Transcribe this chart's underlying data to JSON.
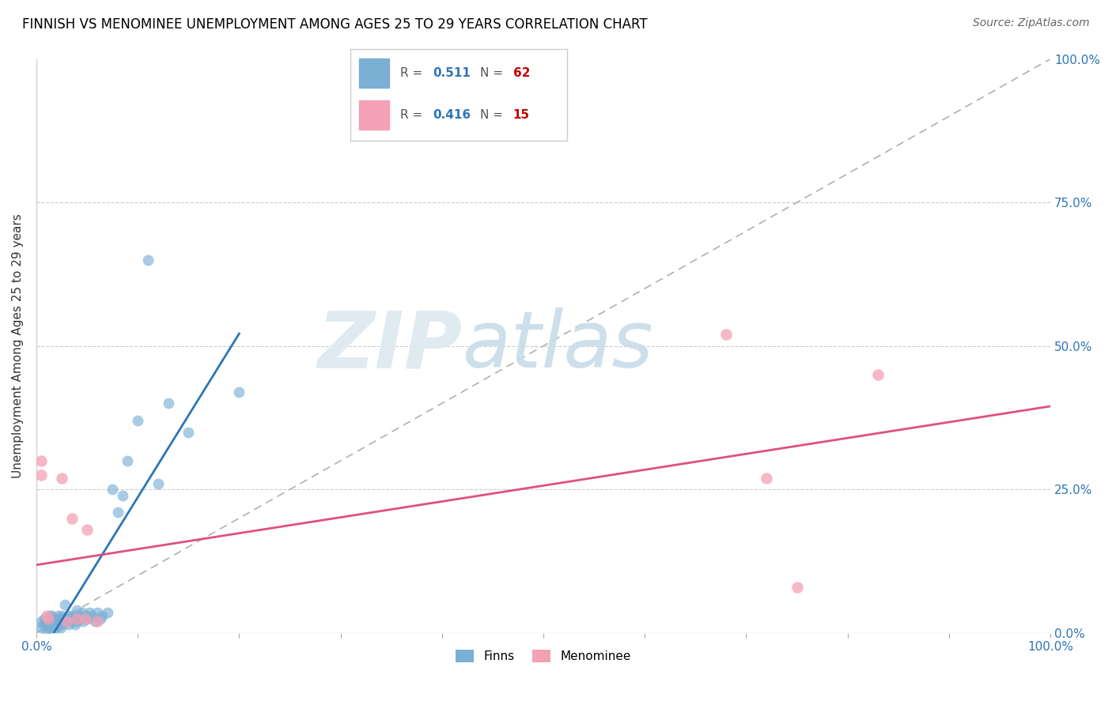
{
  "title": "FINNISH VS MENOMINEE UNEMPLOYMENT AMONG AGES 25 TO 29 YEARS CORRELATION CHART",
  "source": "Source: ZipAtlas.com",
  "ylabel": "Unemployment Among Ages 25 to 29 years",
  "xlim": [
    0,
    1
  ],
  "ylim": [
    0,
    1
  ],
  "xticks": [
    0.0,
    0.1,
    0.2,
    0.3,
    0.4,
    0.5,
    0.6,
    0.7,
    0.8,
    0.9,
    1.0
  ],
  "yticks": [
    0.0,
    0.25,
    0.5,
    0.75,
    1.0
  ],
  "xticklabels_shown": {
    "0.0": "0.0%",
    "1.0": "100.0%"
  },
  "yticklabels": [
    "0.0%",
    "25.0%",
    "50.0%",
    "75.0%",
    "100.0%"
  ],
  "finns_color": "#7bafd4",
  "menominee_color": "#f4a0b5",
  "finns_line_color": "#2e75b6",
  "menominee_line_color": "#e05080",
  "finns_R": 0.511,
  "finns_N": 62,
  "menominee_R": 0.416,
  "menominee_N": 15,
  "legend_R_color": "#2e75b6",
  "legend_N_color": "#c00000",
  "watermark_text": "ZIPatlas",
  "finns_x": [
    0.005,
    0.005,
    0.007,
    0.008,
    0.01,
    0.01,
    0.012,
    0.012,
    0.013,
    0.014,
    0.015,
    0.015,
    0.016,
    0.017,
    0.018,
    0.018,
    0.019,
    0.02,
    0.02,
    0.021,
    0.022,
    0.022,
    0.023,
    0.024,
    0.025,
    0.025,
    0.026,
    0.027,
    0.028,
    0.03,
    0.031,
    0.032,
    0.033,
    0.035,
    0.036,
    0.037,
    0.038,
    0.04,
    0.04,
    0.042,
    0.043,
    0.045,
    0.046,
    0.048,
    0.05,
    0.052,
    0.055,
    0.058,
    0.06,
    0.063,
    0.065,
    0.07,
    0.075,
    0.08,
    0.085,
    0.09,
    0.1,
    0.11,
    0.12,
    0.13,
    0.15,
    0.2
  ],
  "finns_y": [
    0.01,
    0.02,
    0.015,
    0.025,
    0.005,
    0.015,
    0.01,
    0.02,
    0.03,
    0.01,
    0.02,
    0.03,
    0.015,
    0.025,
    0.01,
    0.015,
    0.02,
    0.01,
    0.025,
    0.02,
    0.015,
    0.03,
    0.025,
    0.01,
    0.02,
    0.03,
    0.015,
    0.025,
    0.05,
    0.02,
    0.03,
    0.015,
    0.025,
    0.02,
    0.03,
    0.025,
    0.015,
    0.04,
    0.02,
    0.03,
    0.025,
    0.035,
    0.02,
    0.03,
    0.025,
    0.035,
    0.03,
    0.02,
    0.035,
    0.025,
    0.03,
    0.035,
    0.25,
    0.21,
    0.24,
    0.3,
    0.37,
    0.65,
    0.26,
    0.4,
    0.35,
    0.42
  ],
  "menominee_x": [
    0.005,
    0.005,
    0.01,
    0.012,
    0.025,
    0.03,
    0.035,
    0.04,
    0.048,
    0.05,
    0.06,
    0.68,
    0.72,
    0.75,
    0.83
  ],
  "menominee_y": [
    0.3,
    0.275,
    0.03,
    0.025,
    0.27,
    0.02,
    0.2,
    0.025,
    0.025,
    0.18,
    0.02,
    0.52,
    0.27,
    0.08,
    0.45
  ]
}
